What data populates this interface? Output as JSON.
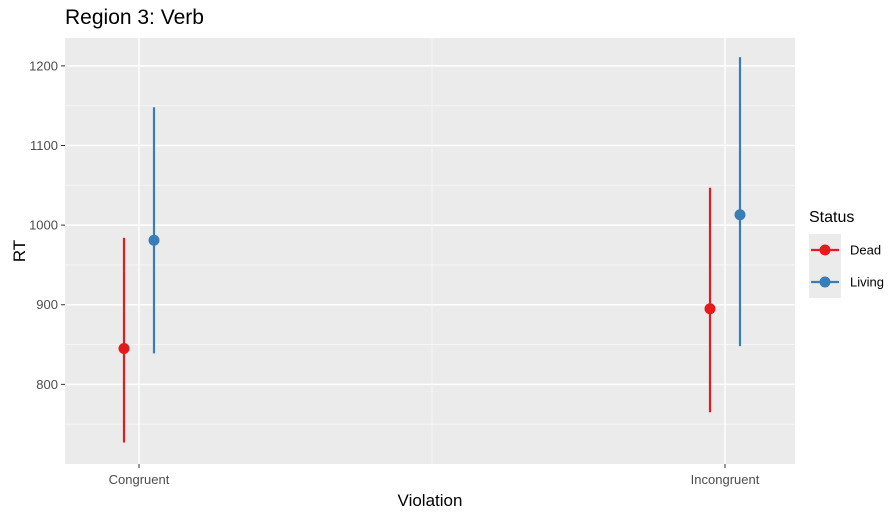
{
  "chart_data": {
    "type": "pointrange",
    "title": "Region 3: Verb",
    "xlabel": "Violation",
    "ylabel": "RT",
    "categories": [
      "Congruent",
      "Incongruent"
    ],
    "ylim": [
      700,
      1235
    ],
    "yticks": [
      800,
      900,
      1000,
      1100,
      1200
    ],
    "grid": true,
    "legend": {
      "title": "Status",
      "position": "right"
    },
    "series": [
      {
        "name": "Dead",
        "color": "#e41a1c",
        "points": [
          {
            "x": "Congruent",
            "y": 845,
            "ymin": 727,
            "ymax": 984
          },
          {
            "x": "Incongruent",
            "y": 895,
            "ymin": 765,
            "ymax": 1047
          }
        ]
      },
      {
        "name": "Living",
        "color": "#377eb8",
        "points": [
          {
            "x": "Congruent",
            "y": 981,
            "ymin": 839,
            "ymax": 1148
          },
          {
            "x": "Incongruent",
            "y": 1013,
            "ymin": 848,
            "ymax": 1211
          }
        ]
      }
    ]
  }
}
